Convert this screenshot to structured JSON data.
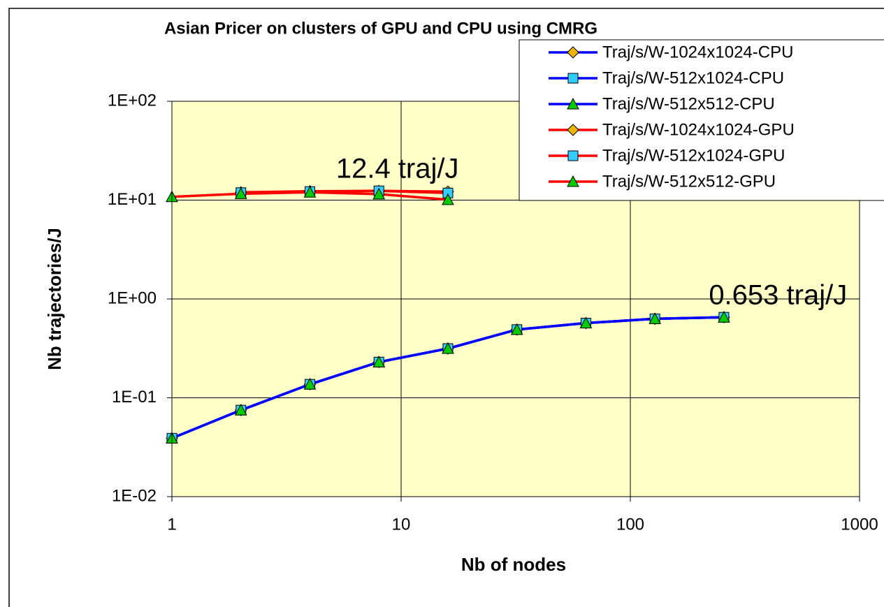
{
  "chart_data": {
    "type": "line",
    "title": "Asian Pricer on clusters of GPU and CPU using CMRG",
    "xlabel": "Nb of nodes",
    "ylabel": "Nb trajectories/J",
    "xscale": "log",
    "yscale": "log",
    "xlim": [
      1,
      1000
    ],
    "ylim": [
      0.01,
      100
    ],
    "xticks": [
      1,
      10,
      100,
      1000
    ],
    "yticks": [
      {
        "value": 0.01,
        "label": "1E-02"
      },
      {
        "value": 0.1,
        "label": "1E-01"
      },
      {
        "value": 1,
        "label": "1E+00"
      },
      {
        "value": 10,
        "label": "1E+01"
      },
      {
        "value": 100,
        "label": "1E+02"
      }
    ],
    "grid": true,
    "legend": "upper right",
    "annotations": [
      {
        "text": "12.4 traj/J",
        "x": 5.2,
        "y": 20
      },
      {
        "text": "0.653 traj/J",
        "x": 220,
        "y": 1.05
      }
    ],
    "series": [
      {
        "name": "Traj/s/W-1024x1024-CPU",
        "color": "#0000ff",
        "marker": "diamond",
        "marker_color": "#f0b400",
        "x": [
          1,
          2,
          4,
          8,
          16,
          32,
          64,
          128,
          256
        ],
        "values": [
          0.039,
          0.075,
          0.137,
          0.23,
          0.315,
          0.49,
          0.57,
          0.63,
          0.653
        ]
      },
      {
        "name": "Traj/s/W-512x1024-CPU",
        "color": "#0000ff",
        "marker": "square",
        "marker_color": "#33ccff",
        "x": [
          1,
          2,
          4,
          8,
          16,
          32,
          64,
          128,
          256
        ],
        "values": [
          0.039,
          0.075,
          0.137,
          0.23,
          0.315,
          0.49,
          0.57,
          0.63,
          0.653
        ]
      },
      {
        "name": "Traj/s/W-512x512-CPU",
        "color": "#0000ff",
        "marker": "triangle",
        "marker_color": "#00cc00",
        "x": [
          1,
          2,
          4,
          8,
          16,
          32,
          64,
          128,
          256
        ],
        "values": [
          0.039,
          0.075,
          0.137,
          0.23,
          0.315,
          0.49,
          0.57,
          0.63,
          0.653
        ]
      },
      {
        "name": "Traj/s/W-1024x1024-GPU",
        "color": "#ff0000",
        "marker": "diamond",
        "marker_color": "#f0b400",
        "x": [
          2,
          4,
          8,
          16
        ],
        "values": [
          12.0,
          12.3,
          12.4,
          12.2
        ]
      },
      {
        "name": "Traj/s/W-512x1024-GPU",
        "color": "#ff0000",
        "marker": "square",
        "marker_color": "#33ccff",
        "x": [
          2,
          4,
          8,
          16
        ],
        "values": [
          11.9,
          12.2,
          12.4,
          11.8
        ]
      },
      {
        "name": "Traj/s/W-512x512-GPU",
        "color": "#ff0000",
        "marker": "triangle",
        "marker_color": "#00cc00",
        "x": [
          1,
          2,
          4,
          8,
          16
        ],
        "values": [
          10.8,
          11.6,
          12.0,
          11.5,
          10.1
        ]
      }
    ]
  }
}
